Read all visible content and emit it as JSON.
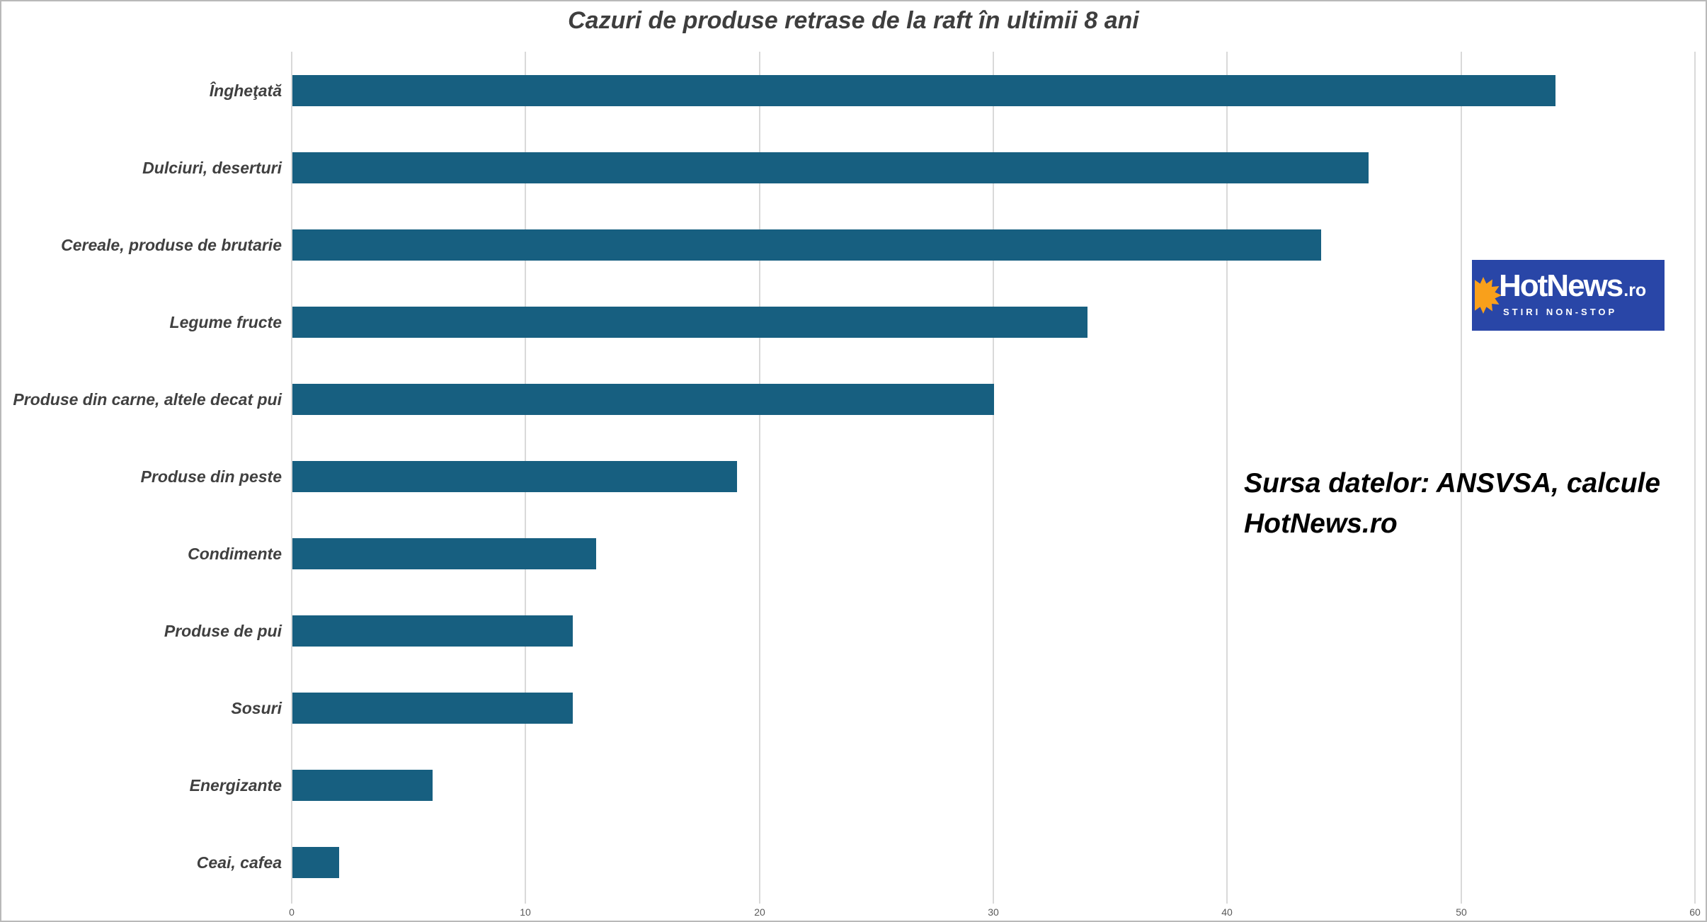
{
  "chart_data": {
    "type": "bar",
    "orientation": "horizontal",
    "title": "Cazuri de produse retrase de la raft în ultimii 8 ani",
    "categories": [
      "Îngheţată",
      "Dulciuri, deserturi",
      "Cereale, produse de brutarie",
      "Legume fructe",
      "Produse din carne, altele decat pui",
      "Produse din peste",
      "Condimente",
      "Produse de pui",
      "Sosuri",
      "Energizante",
      "Ceai, cafea"
    ],
    "values": [
      54,
      46,
      44,
      34,
      30,
      19,
      13,
      12,
      12,
      6,
      2
    ],
    "xlabel": "",
    "ylabel": "",
    "xlim": [
      0,
      60
    ],
    "xticks": [
      0,
      10,
      20,
      30,
      40,
      50,
      60
    ],
    "grid": "vertical",
    "legend": "none",
    "bar_color": "#175F80",
    "gridline_color": "#d9d9d9"
  },
  "source_note": {
    "line1": "Sursa datelor: ANSVSA, calcule",
    "line2": "HotNews.ro"
  },
  "logo": {
    "brand": "HotNews",
    "tld": ".ro",
    "tagline": "STIRI NON-STOP",
    "bg_color": "#2946A7",
    "sun_color": "#F9A01B"
  }
}
